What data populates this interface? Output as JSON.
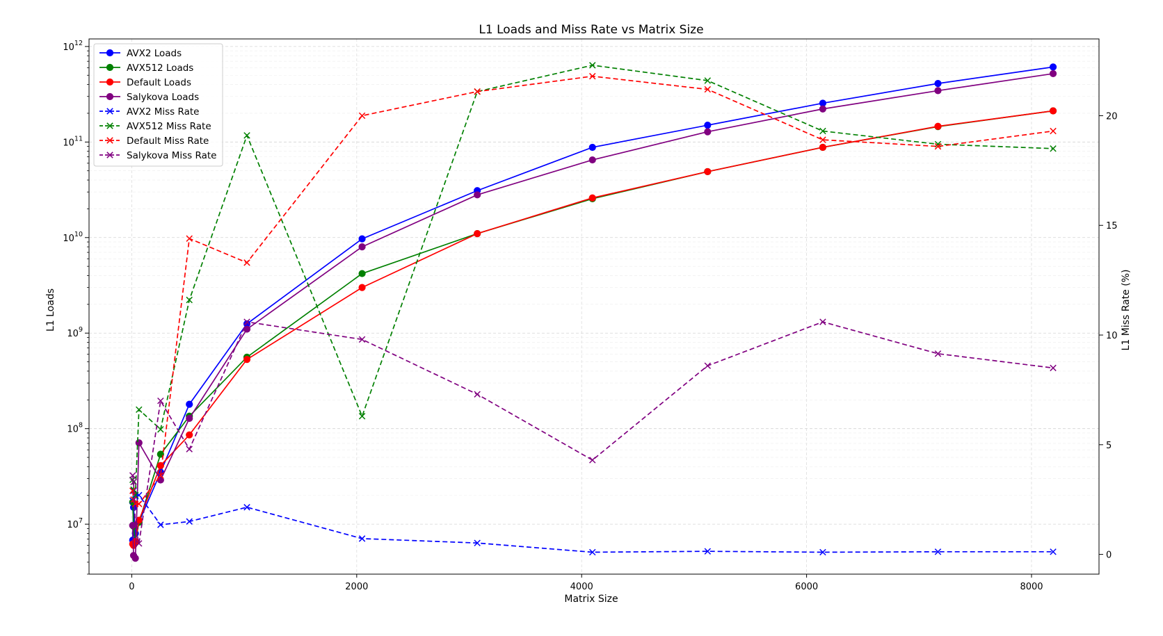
{
  "chart_data": {
    "type": "line",
    "title": "L1 Loads and Miss Rate vs Matrix Size",
    "xlabel": "Matrix Size",
    "ylabel_left": "L1 Loads",
    "ylabel_right": "L1 Miss Rate (%)",
    "xlim": [
      -380,
      8600
    ],
    "ylim_left": [
      3000000,
      1200000000000
    ],
    "ylim_right": [
      -0.9,
      23.5
    ],
    "yscale_left": "log",
    "yscale_right": "linear",
    "xticks": [
      0,
      2000,
      4000,
      6000,
      8000
    ],
    "yticks_left": [
      {
        "value": 10000000,
        "base": "10",
        "exp": "7"
      },
      {
        "value": 100000000,
        "base": "10",
        "exp": "8"
      },
      {
        "value": 1000000000,
        "base": "10",
        "exp": "9"
      },
      {
        "value": 10000000000,
        "base": "10",
        "exp": "10"
      },
      {
        "value": 100000000000,
        "base": "10",
        "exp": "11"
      },
      {
        "value": 1000000000000,
        "base": "10",
        "exp": "12"
      }
    ],
    "yticks_right": [
      0,
      5,
      10,
      15,
      20
    ],
    "grid": true,
    "legend_position": "top-left",
    "x": [
      8,
      16,
      32,
      64,
      256,
      512,
      1024,
      2048,
      3072,
      4096,
      5120,
      6144,
      7168,
      8192
    ],
    "series": [
      {
        "name": "AVX2 Loads",
        "axis": "left",
        "color": "#0000ff",
        "marker": "o",
        "linestyle": "solid",
        "values": [
          6800000,
          15000000,
          8000000,
          10500000,
          35000000,
          180000000,
          1250000000,
          9700000000,
          31000000000,
          88000000000,
          150000000000,
          255000000000,
          410000000000,
          610000000000
        ]
      },
      {
        "name": "AVX512 Loads",
        "axis": "left",
        "color": "#008000",
        "marker": "o",
        "linestyle": "solid",
        "values": [
          17000000,
          9500000,
          6500000,
          10500000,
          54000000,
          135000000,
          560000000,
          4200000000,
          11000000000,
          25500000000,
          49000000000,
          88000000000,
          145000000000,
          212000000000
        ]
      },
      {
        "name": "Default Loads",
        "axis": "left",
        "color": "#ff0000",
        "marker": "o",
        "linestyle": "solid",
        "values": [
          6200000,
          6000000,
          6600000,
          11000000,
          41000000,
          86000000,
          530000000,
          3000000000,
          11000000000,
          26000000000,
          49000000000,
          88000000000,
          146000000000,
          212000000000
        ]
      },
      {
        "name": "Salykova Loads",
        "axis": "left",
        "color": "#800080",
        "marker": "o",
        "linestyle": "solid",
        "values": [
          9700000,
          4700000,
          4400000,
          71000000,
          29000000,
          128000000,
          1100000000,
          8000000000,
          28000000000,
          65000000000,
          128000000000,
          222000000000,
          345000000000,
          520000000000
        ]
      },
      {
        "name": "AVX2 Miss Rate",
        "axis": "right",
        "color": "#0000ff",
        "marker": "x",
        "linestyle": "dashed",
        "values": [
          2.45,
          2.9,
          2.65,
          2.7,
          1.35,
          1.5,
          2.15,
          0.72,
          0.52,
          0.1,
          0.14,
          0.1,
          0.12,
          0.12
        ]
      },
      {
        "name": "AVX512 Miss Rate",
        "axis": "right",
        "color": "#008000",
        "marker": "x",
        "linestyle": "dashed",
        "values": [
          3.4,
          2.95,
          2.7,
          6.6,
          5.7,
          11.6,
          19.1,
          6.3,
          21.1,
          22.3,
          21.6,
          19.3,
          18.7,
          18.5
        ]
      },
      {
        "name": "Default Miss Rate",
        "axis": "right",
        "color": "#ff0000",
        "marker": "x",
        "linestyle": "dashed",
        "values": [
          2.9,
          2.5,
          2.3,
          2.3,
          3.6,
          14.4,
          13.3,
          20.0,
          21.1,
          21.8,
          21.2,
          18.9,
          18.6,
          19.3
        ]
      },
      {
        "name": "Salykova Miss Rate",
        "axis": "right",
        "color": "#800080",
        "marker": "x",
        "linestyle": "dashed",
        "values": [
          3.6,
          3.3,
          1.3,
          0.5,
          7.0,
          4.8,
          10.6,
          9.8,
          7.3,
          4.3,
          8.6,
          10.6,
          9.15,
          8.5
        ]
      }
    ]
  }
}
